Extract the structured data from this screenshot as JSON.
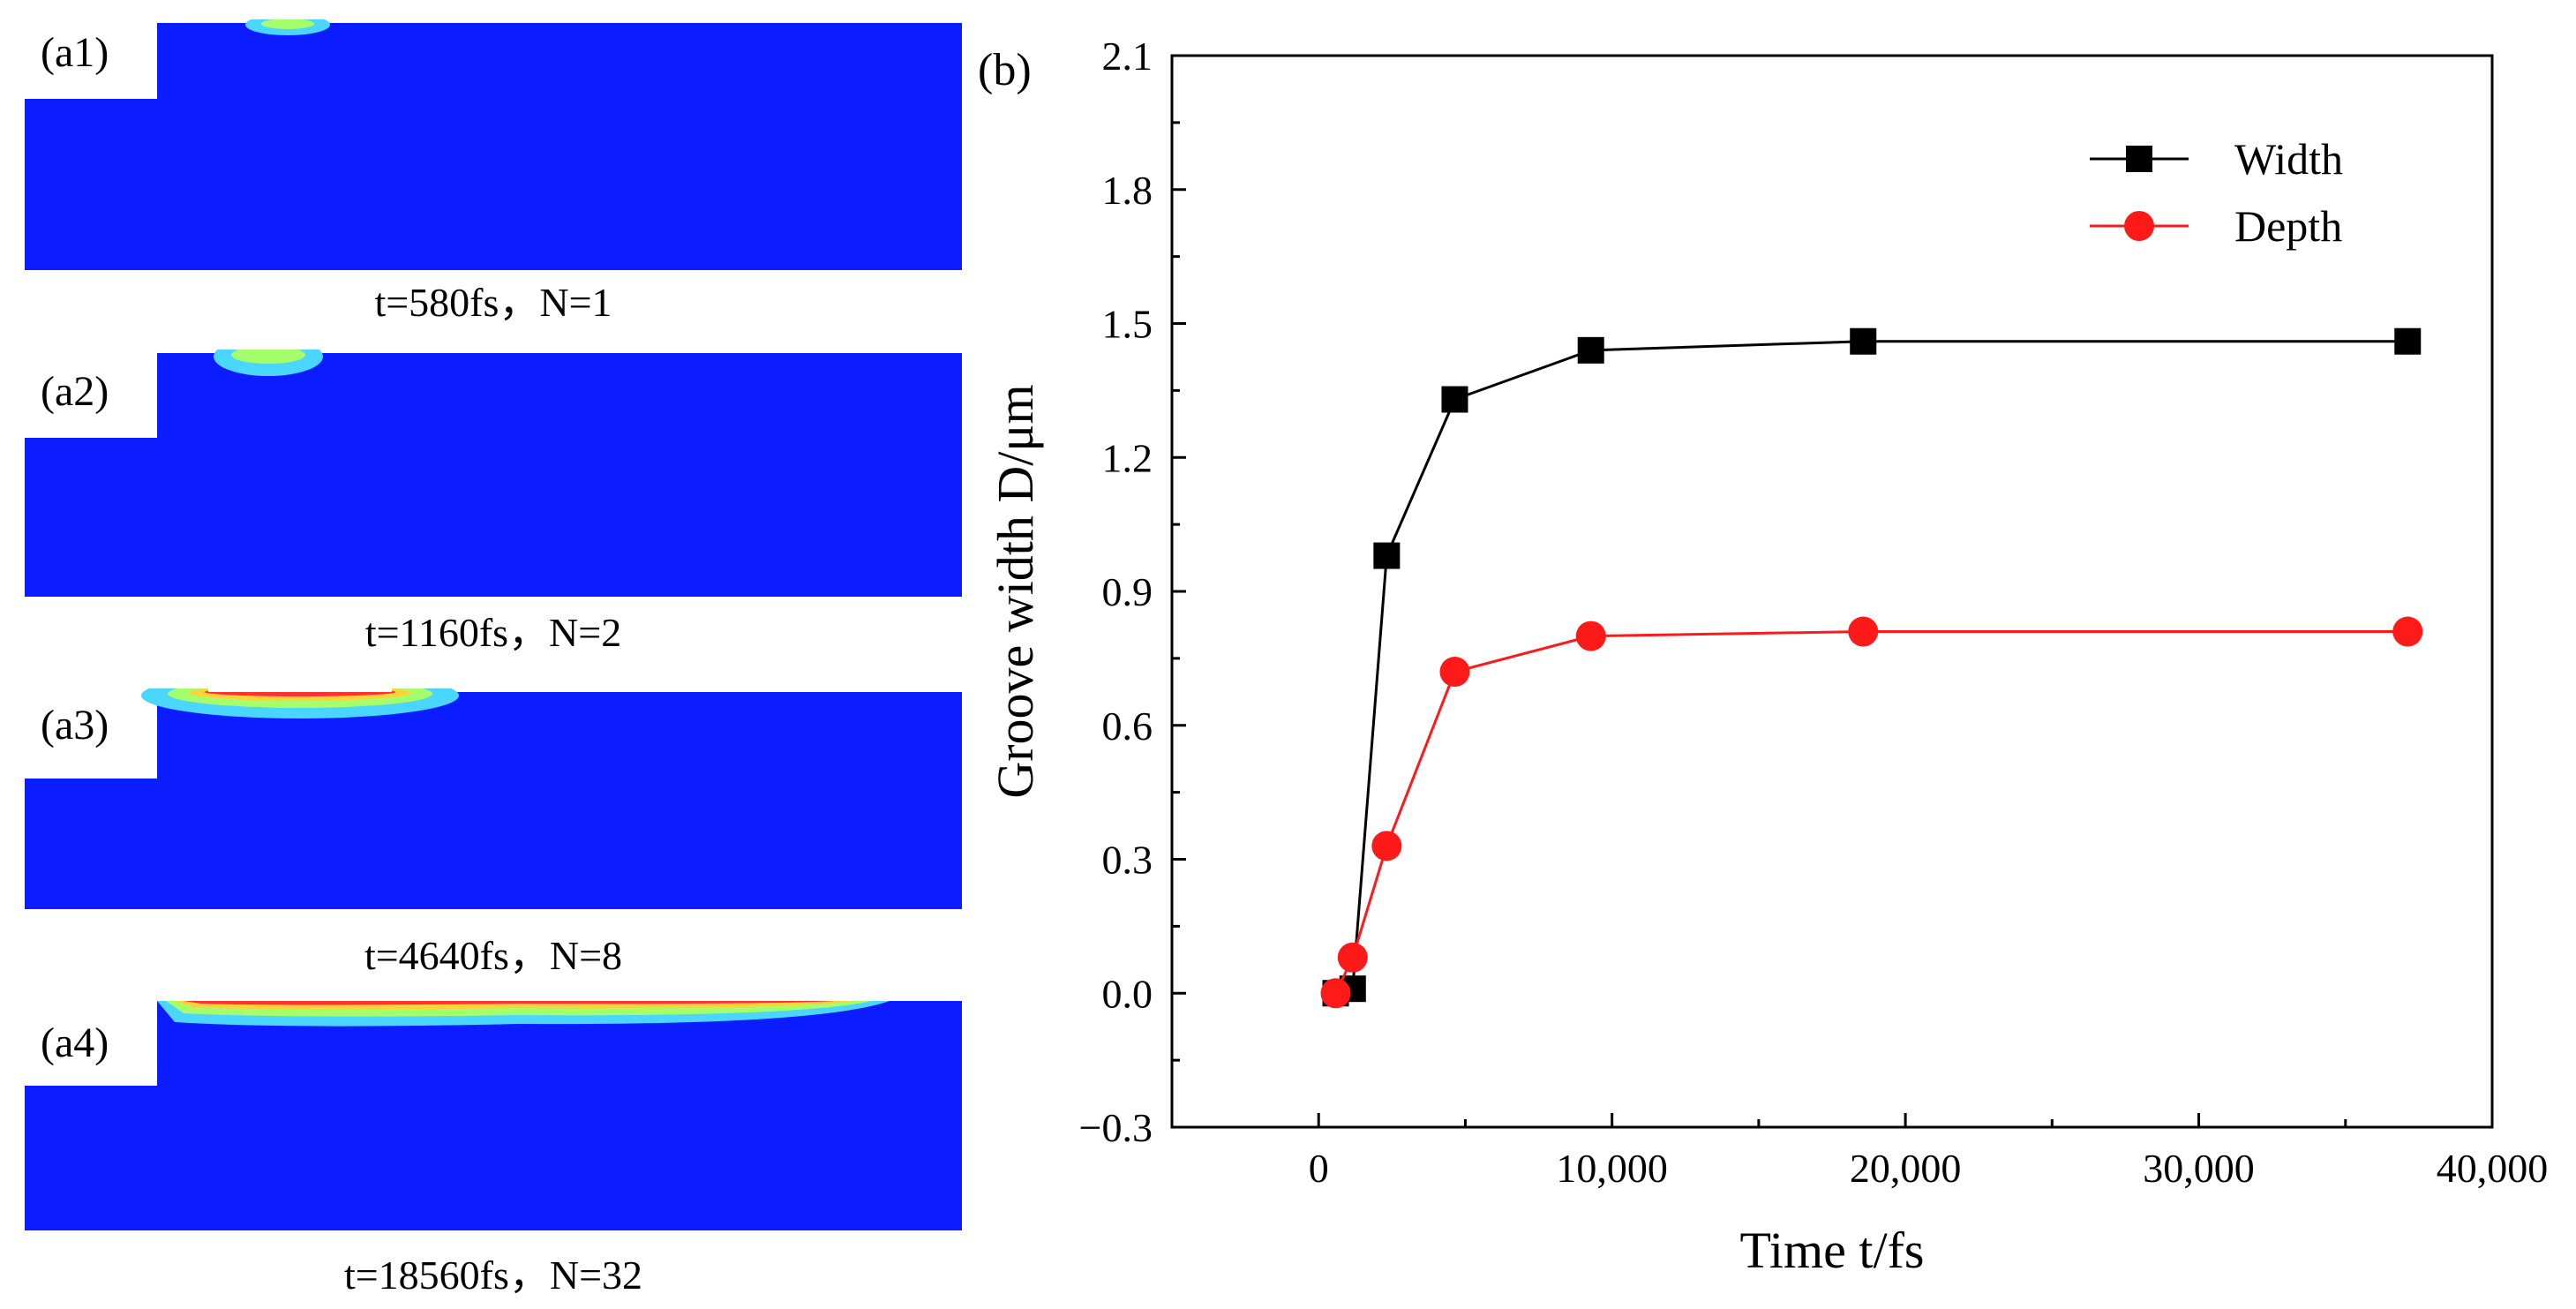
{
  "colors": {
    "material": "#0b1dff",
    "groove_outer": "#4ad6ff",
    "groove_mid": "#a4ff6a",
    "groove_hot": "#ff3030",
    "width_series": "#000000",
    "depth_series": "#ff1a1a"
  },
  "panels": [
    {
      "tag": "(a1)",
      "caption": "t=580fs，N=1"
    },
    {
      "tag": "(a2)",
      "caption": "t=1160fs，N=2"
    },
    {
      "tag": "(a3)",
      "caption": "t=4640fs，N=8"
    },
    {
      "tag": "(a4)",
      "caption": "t=18560fs，N=32"
    }
  ],
  "chart_data": {
    "type": "line",
    "panel_label": "(b)",
    "title": "",
    "xlabel": "Time t/fs",
    "ylabel": "Groove width D/μm",
    "xlim": [
      -5000,
      40000
    ],
    "ylim": [
      -0.3,
      2.1
    ],
    "xticks": [
      0,
      10000,
      20000,
      30000,
      40000
    ],
    "xtick_labels": [
      "0",
      "10,000",
      "20,000",
      "30,000",
      "40,000"
    ],
    "yticks": [
      -0.3,
      0.0,
      0.3,
      0.6,
      0.9,
      1.2,
      1.5,
      1.8,
      2.1
    ],
    "ytick_labels": [
      "−0.3",
      "0.0",
      "0.3",
      "0.6",
      "0.9",
      "1.2",
      "1.5",
      "1.8",
      "2.1"
    ],
    "grid": false,
    "legend_position": "top-right",
    "series": [
      {
        "name": "Width",
        "marker": "square",
        "color": "#000000",
        "x": [
          580,
          1160,
          2320,
          4640,
          9280,
          18560,
          37120
        ],
        "y": [
          0.0,
          0.01,
          0.98,
          1.33,
          1.44,
          1.46,
          1.46
        ]
      },
      {
        "name": "Depth",
        "marker": "circle",
        "color": "#ff1a1a",
        "x": [
          580,
          1160,
          2320,
          4640,
          9280,
          18560,
          37120
        ],
        "y": [
          0.0,
          0.08,
          0.33,
          0.72,
          0.8,
          0.81,
          0.81
        ]
      }
    ]
  }
}
